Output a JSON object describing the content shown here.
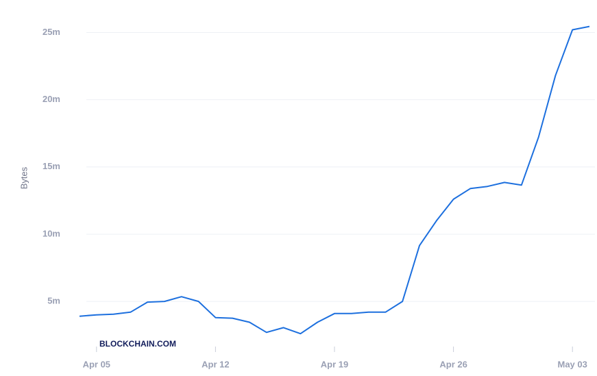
{
  "chart_data": {
    "type": "line",
    "ylabel": "Bytes",
    "watermark": "BLOCKCHAIN.COM",
    "color": "#1c6fde",
    "x": [
      "04-04",
      "04-05",
      "04-06",
      "04-07",
      "04-08",
      "04-09",
      "04-10",
      "04-11",
      "04-12",
      "04-13",
      "04-14",
      "04-15",
      "04-16",
      "04-17",
      "04-18",
      "04-19",
      "04-20",
      "04-21",
      "04-22",
      "04-23",
      "04-24",
      "04-25",
      "04-26",
      "04-27",
      "04-28",
      "04-29",
      "04-30",
      "05-01",
      "05-02",
      "05-03",
      "05-04"
    ],
    "values": [
      3900000,
      4000000,
      4050000,
      4200000,
      4950000,
      5000000,
      5350000,
      5000000,
      3800000,
      3750000,
      3450000,
      2700000,
      3050000,
      2600000,
      3450000,
      4100000,
      4100000,
      4200000,
      4200000,
      5000000,
      9150000,
      11000000,
      12600000,
      13400000,
      13550000,
      13850000,
      13650000,
      17200000,
      21800000,
      25200000,
      25450000
    ],
    "xlim": [
      "04-04",
      "05-04"
    ],
    "xticks": [
      {
        "value": "04-05",
        "label": "Apr 05"
      },
      {
        "value": "04-12",
        "label": "Apr 12"
      },
      {
        "value": "04-19",
        "label": "Apr 19"
      },
      {
        "value": "04-26",
        "label": "Apr 26"
      },
      {
        "value": "05-03",
        "label": "May 03"
      }
    ],
    "ylim": [
      2000000,
      26500000
    ],
    "yticks": [
      {
        "value": 5000000,
        "label": "5m"
      },
      {
        "value": 10000000,
        "label": "10m"
      },
      {
        "value": 15000000,
        "label": "15m"
      },
      {
        "value": 20000000,
        "label": "20m"
      },
      {
        "value": 25000000,
        "label": "25m"
      }
    ],
    "grid": true
  }
}
